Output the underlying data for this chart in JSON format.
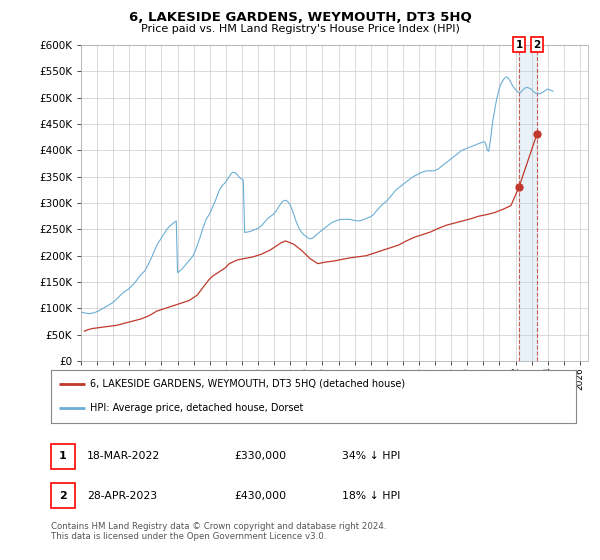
{
  "title": "6, LAKESIDE GARDENS, WEYMOUTH, DT3 5HQ",
  "subtitle": "Price paid vs. HM Land Registry's House Price Index (HPI)",
  "ylim": [
    0,
    600000
  ],
  "yticks": [
    0,
    50000,
    100000,
    150000,
    200000,
    250000,
    300000,
    350000,
    400000,
    450000,
    500000,
    550000,
    600000
  ],
  "xmin": 1995.0,
  "xmax": 2026.5,
  "hpi_color": "#6baed6",
  "price_color": "#c0392b",
  "dashed_color_red": "#c0392b",
  "dashed_color_blue": "#aec6e8",
  "marker1_x": 2022.21,
  "marker1_y": 330000,
  "marker2_x": 2023.32,
  "marker2_y": 430000,
  "legend_line1": "6, LAKESIDE GARDENS, WEYMOUTH, DT3 5HQ (detached house)",
  "legend_line2": "HPI: Average price, detached house, Dorset",
  "table_row1": [
    "1",
    "18-MAR-2022",
    "£330,000",
    "34% ↓ HPI"
  ],
  "table_row2": [
    "2",
    "28-APR-2023",
    "£430,000",
    "18% ↓ HPI"
  ],
  "footer": "Contains HM Land Registry data © Crown copyright and database right 2024.\nThis data is licensed under the Open Government Licence v3.0.",
  "background_color": "#ffffff",
  "grid_color": "#cccccc",
  "hpi_x": [
    1995.0,
    1995.08,
    1995.17,
    1995.25,
    1995.33,
    1995.42,
    1995.5,
    1995.58,
    1995.67,
    1995.75,
    1995.83,
    1995.92,
    1996.0,
    1996.08,
    1996.17,
    1996.25,
    1996.33,
    1996.42,
    1996.5,
    1996.58,
    1996.67,
    1996.75,
    1996.83,
    1996.92,
    1997.0,
    1997.08,
    1997.17,
    1997.25,
    1997.33,
    1997.42,
    1997.5,
    1997.58,
    1997.67,
    1997.75,
    1997.83,
    1997.92,
    1998.0,
    1998.08,
    1998.17,
    1998.25,
    1998.33,
    1998.42,
    1998.5,
    1998.58,
    1998.67,
    1998.75,
    1998.83,
    1998.92,
    1999.0,
    1999.08,
    1999.17,
    1999.25,
    1999.33,
    1999.42,
    1999.5,
    1999.58,
    1999.67,
    1999.75,
    1999.83,
    1999.92,
    2000.0,
    2000.08,
    2000.17,
    2000.25,
    2000.33,
    2000.42,
    2000.5,
    2000.58,
    2000.67,
    2000.75,
    2000.83,
    2000.92,
    2001.0,
    2001.08,
    2001.17,
    2001.25,
    2001.33,
    2001.42,
    2001.5,
    2001.58,
    2001.67,
    2001.75,
    2001.83,
    2001.92,
    2002.0,
    2002.08,
    2002.17,
    2002.25,
    2002.33,
    2002.42,
    2002.5,
    2002.58,
    2002.67,
    2002.75,
    2002.83,
    2002.92,
    2003.0,
    2003.08,
    2003.17,
    2003.25,
    2003.33,
    2003.42,
    2003.5,
    2003.58,
    2003.67,
    2003.75,
    2003.83,
    2003.92,
    2004.0,
    2004.08,
    2004.17,
    2004.25,
    2004.33,
    2004.42,
    2004.5,
    2004.58,
    2004.67,
    2004.75,
    2004.83,
    2004.92,
    2005.0,
    2005.08,
    2005.17,
    2005.25,
    2005.33,
    2005.42,
    2005.5,
    2005.58,
    2005.67,
    2005.75,
    2005.83,
    2005.92,
    2006.0,
    2006.08,
    2006.17,
    2006.25,
    2006.33,
    2006.42,
    2006.5,
    2006.58,
    2006.67,
    2006.75,
    2006.83,
    2006.92,
    2007.0,
    2007.08,
    2007.17,
    2007.25,
    2007.33,
    2007.42,
    2007.5,
    2007.58,
    2007.67,
    2007.75,
    2007.83,
    2007.92,
    2008.0,
    2008.08,
    2008.17,
    2008.25,
    2008.33,
    2008.42,
    2008.5,
    2008.58,
    2008.67,
    2008.75,
    2008.83,
    2008.92,
    2009.0,
    2009.08,
    2009.17,
    2009.25,
    2009.33,
    2009.42,
    2009.5,
    2009.58,
    2009.67,
    2009.75,
    2009.83,
    2009.92,
    2010.0,
    2010.08,
    2010.17,
    2010.25,
    2010.33,
    2010.42,
    2010.5,
    2010.58,
    2010.67,
    2010.75,
    2010.83,
    2010.92,
    2011.0,
    2011.08,
    2011.17,
    2011.25,
    2011.33,
    2011.42,
    2011.5,
    2011.58,
    2011.67,
    2011.75,
    2011.83,
    2011.92,
    2012.0,
    2012.08,
    2012.17,
    2012.25,
    2012.33,
    2012.42,
    2012.5,
    2012.58,
    2012.67,
    2012.75,
    2012.83,
    2012.92,
    2013.0,
    2013.08,
    2013.17,
    2013.25,
    2013.33,
    2013.42,
    2013.5,
    2013.58,
    2013.67,
    2013.75,
    2013.83,
    2013.92,
    2014.0,
    2014.08,
    2014.17,
    2014.25,
    2014.33,
    2014.42,
    2014.5,
    2014.58,
    2014.67,
    2014.75,
    2014.83,
    2014.92,
    2015.0,
    2015.08,
    2015.17,
    2015.25,
    2015.33,
    2015.42,
    2015.5,
    2015.58,
    2015.67,
    2015.75,
    2015.83,
    2015.92,
    2016.0,
    2016.08,
    2016.17,
    2016.25,
    2016.33,
    2016.42,
    2016.5,
    2016.58,
    2016.67,
    2016.75,
    2016.83,
    2016.92,
    2017.0,
    2017.08,
    2017.17,
    2017.25,
    2017.33,
    2017.42,
    2017.5,
    2017.58,
    2017.67,
    2017.75,
    2017.83,
    2017.92,
    2018.0,
    2018.08,
    2018.17,
    2018.25,
    2018.33,
    2018.42,
    2018.5,
    2018.58,
    2018.67,
    2018.75,
    2018.83,
    2018.92,
    2019.0,
    2019.08,
    2019.17,
    2019.25,
    2019.33,
    2019.42,
    2019.5,
    2019.58,
    2019.67,
    2019.75,
    2019.83,
    2019.92,
    2020.0,
    2020.08,
    2020.17,
    2020.25,
    2020.33,
    2020.42,
    2020.5,
    2020.58,
    2020.67,
    2020.75,
    2020.83,
    2020.92,
    2021.0,
    2021.08,
    2021.17,
    2021.25,
    2021.33,
    2021.42,
    2021.5,
    2021.58,
    2021.67,
    2021.75,
    2021.83,
    2021.92,
    2022.0,
    2022.08,
    2022.17,
    2022.25,
    2022.33,
    2022.42,
    2022.5,
    2022.58,
    2022.67,
    2022.75,
    2022.83,
    2022.92,
    2023.0,
    2023.08,
    2023.17,
    2023.25,
    2023.33,
    2023.42,
    2023.5,
    2023.58,
    2023.67,
    2023.75,
    2023.83,
    2023.92,
    2024.0,
    2024.08,
    2024.17,
    2024.25,
    2024.33
  ],
  "hpi_y": [
    93000,
    92500,
    92000,
    91500,
    91000,
    90500,
    90000,
    90500,
    91000,
    91500,
    92000,
    93000,
    94000,
    95000,
    96500,
    98000,
    99500,
    101000,
    102500,
    104000,
    105500,
    107000,
    108500,
    110000,
    112000,
    114000,
    116500,
    119000,
    121500,
    124000,
    126500,
    129000,
    131000,
    133000,
    134500,
    136000,
    138000,
    140500,
    143000,
    145500,
    148500,
    152000,
    155500,
    159000,
    162000,
    165000,
    167500,
    170000,
    173000,
    178000,
    183000,
    188000,
    193000,
    199000,
    205000,
    211000,
    217000,
    222000,
    226000,
    230000,
    234000,
    238000,
    242000,
    246000,
    250000,
    253000,
    256000,
    258000,
    260000,
    262000,
    264000,
    266000,
    168000,
    170000,
    172000,
    174000,
    177000,
    180000,
    183000,
    186000,
    189000,
    192000,
    195000,
    198000,
    202000,
    208000,
    215000,
    222000,
    229000,
    237000,
    245000,
    253000,
    260000,
    267000,
    272000,
    276000,
    280000,
    286000,
    292000,
    297000,
    303000,
    310000,
    317000,
    323000,
    328000,
    332000,
    335000,
    337000,
    340000,
    344000,
    348000,
    352000,
    356000,
    358000,
    358000,
    357000,
    355000,
    352000,
    349000,
    347000,
    345000,
    344000,
    244000,
    244500,
    245000,
    245500,
    246000,
    247000,
    248000,
    249000,
    250000,
    251000,
    252000,
    254000,
    256000,
    258000,
    261000,
    264000,
    267000,
    270000,
    272000,
    274000,
    276000,
    278000,
    280000,
    283000,
    287000,
    291000,
    295000,
    299000,
    302000,
    304000,
    305000,
    305000,
    303000,
    300000,
    296000,
    290000,
    283000,
    276000,
    268000,
    261000,
    255000,
    250000,
    246000,
    243000,
    240000,
    238000,
    236000,
    234000,
    233000,
    232000,
    233000,
    234000,
    236000,
    238000,
    241000,
    243000,
    245000,
    247000,
    249000,
    251000,
    253000,
    255000,
    257000,
    259000,
    261000,
    263000,
    264000,
    265000,
    266000,
    267000,
    268000,
    268500,
    269000,
    269000,
    269000,
    269000,
    269000,
    269000,
    269000,
    268500,
    268000,
    267500,
    267000,
    266500,
    266000,
    266000,
    266500,
    267000,
    268000,
    269000,
    270000,
    271000,
    272000,
    273000,
    274000,
    276000,
    278000,
    281000,
    284000,
    287000,
    290000,
    293000,
    295000,
    298000,
    300000,
    302000,
    304000,
    307000,
    310000,
    313000,
    316000,
    319000,
    322000,
    325000,
    327000,
    329000,
    331000,
    333000,
    335000,
    337000,
    339000,
    341000,
    343000,
    345000,
    347000,
    349000,
    350000,
    352000,
    353000,
    354000,
    356000,
    357000,
    358000,
    359000,
    360000,
    360500,
    361000,
    361000,
    361000,
    361000,
    361000,
    361000,
    362000,
    363000,
    364000,
    366000,
    368000,
    370000,
    372000,
    374000,
    376000,
    378000,
    380000,
    382000,
    384000,
    386000,
    388000,
    390000,
    392000,
    394000,
    396000,
    398000,
    400000,
    401000,
    402000,
    403000,
    404000,
    405000,
    406000,
    407000,
    408000,
    409000,
    410000,
    411000,
    412000,
    413000,
    414000,
    415000,
    416000,
    416000,
    410000,
    400000,
    398000,
    415000,
    435000,
    455000,
    470000,
    485000,
    497000,
    508000,
    518000,
    525000,
    530000,
    534000,
    537000,
    539000,
    538000,
    535000,
    531000,
    526000,
    522000,
    518000,
    515000,
    512000,
    510000,
    509000,
    510000,
    513000,
    516000,
    518000,
    519000,
    519000,
    518000,
    517000,
    515000,
    512000,
    510000,
    508000,
    507000,
    507000,
    507000,
    508000,
    510000,
    511000,
    513000,
    515000,
    516000,
    515000,
    514000,
    513000,
    512000,
    511000,
    510000,
    510000,
    511000,
    512000,
    513000,
    514000,
    515000,
    514000,
    513000,
    512000,
    511000
  ],
  "price_x": [
    1995.21,
    1995.46,
    1995.71,
    1995.96,
    1996.21,
    1996.46,
    1996.71,
    1996.96,
    1997.21,
    1997.46,
    1997.71,
    1997.96,
    1998.21,
    1998.71,
    1999.21,
    1999.71,
    2000.21,
    2000.71,
    2001.21,
    2001.71,
    2002.21,
    2002.46,
    2002.71,
    2002.96,
    2003.21,
    2003.46,
    2003.71,
    2003.96,
    2004.21,
    2004.71,
    2005.21,
    2005.71,
    2006.21,
    2006.71,
    2007.21,
    2007.46,
    2007.71,
    2008.21,
    2008.71,
    2009.21,
    2009.71,
    2010.21,
    2010.71,
    2011.21,
    2011.71,
    2012.21,
    2012.71,
    2013.21,
    2013.71,
    2014.21,
    2014.71,
    2015.21,
    2015.71,
    2016.21,
    2016.71,
    2017.21,
    2017.71,
    2018.21,
    2018.71,
    2019.21,
    2019.71,
    2020.21,
    2020.71,
    2021.21,
    2021.71,
    2022.21,
    2023.32
  ],
  "price_y": [
    57000,
    60000,
    62000,
    63000,
    64000,
    65000,
    66000,
    67000,
    68000,
    70000,
    72000,
    74000,
    76000,
    80000,
    86000,
    95000,
    100000,
    105000,
    110000,
    115000,
    125000,
    135000,
    145000,
    155000,
    162000,
    167000,
    172000,
    177000,
    185000,
    192000,
    195000,
    198000,
    203000,
    210000,
    220000,
    225000,
    228000,
    222000,
    210000,
    195000,
    185000,
    188000,
    190000,
    193000,
    196000,
    198000,
    200000,
    205000,
    210000,
    215000,
    220000,
    228000,
    235000,
    240000,
    245000,
    252000,
    258000,
    262000,
    266000,
    270000,
    275000,
    278000,
    282000,
    288000,
    295000,
    330000,
    430000
  ]
}
